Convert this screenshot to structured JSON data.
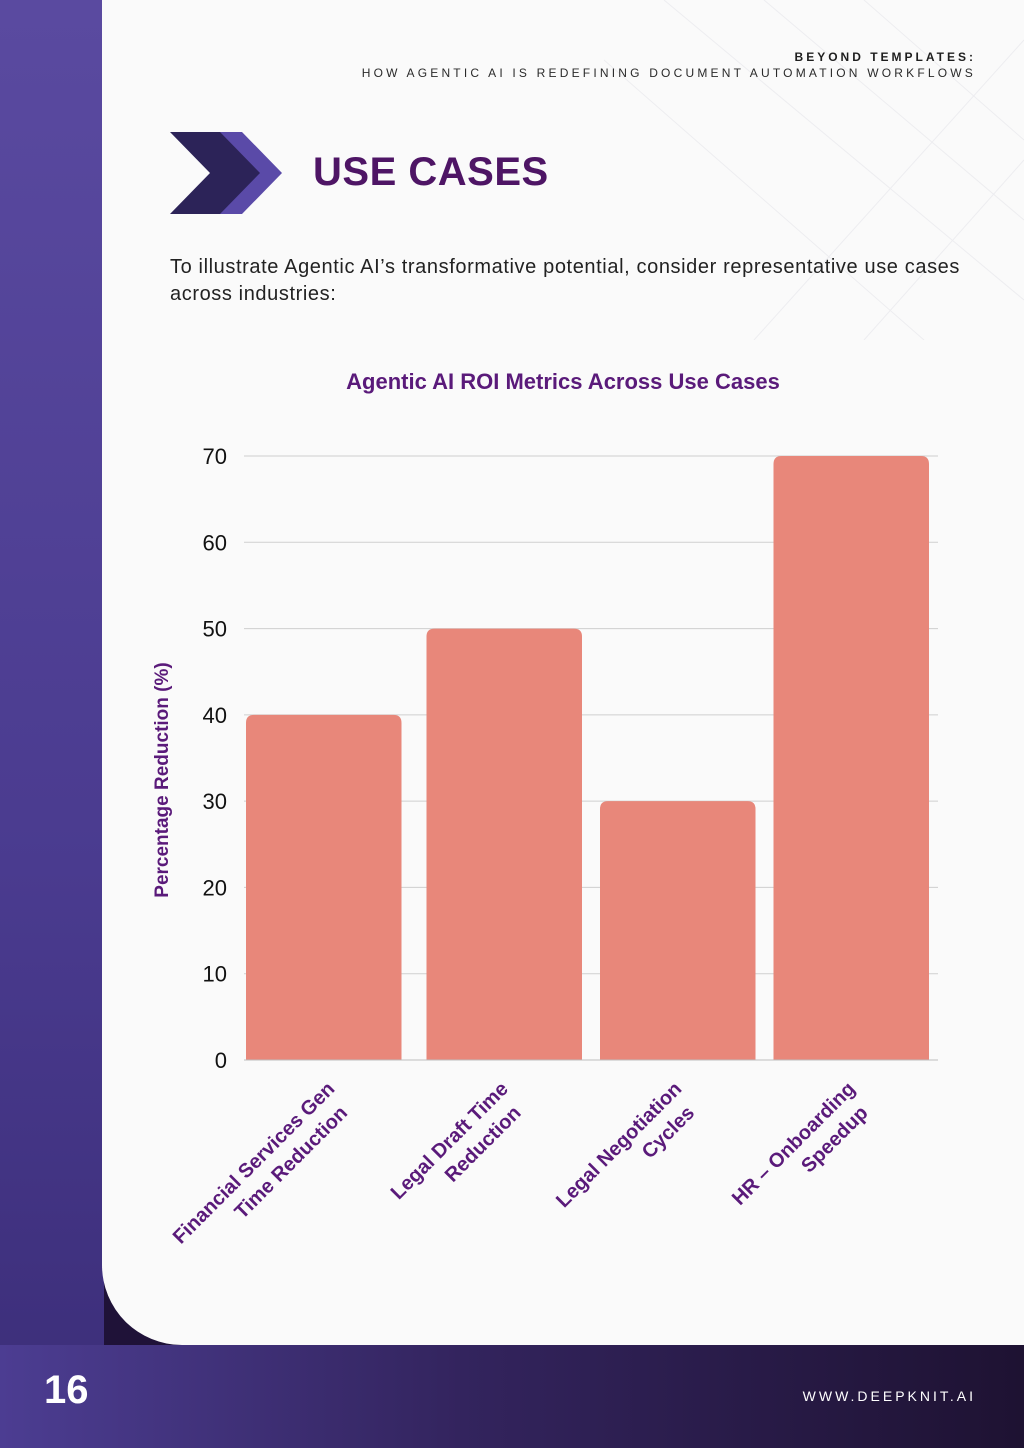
{
  "header": {
    "line1": "BEYOND TEMPLATES:",
    "line2": "HOW AGENTIC AI IS REDEFINING DOCUMENT AUTOMATION WORKFLOWS"
  },
  "section": {
    "title": "USE CASES",
    "intro": "To illustrate Agentic AI’s transformative potential, consider representative use cases across industries:"
  },
  "chart_data": {
    "type": "bar",
    "title": "Agentic AI ROI Metrics Across Use Cases",
    "xlabel": "",
    "ylabel": "Percentage Reduction (%)",
    "ylim": [
      0,
      70
    ],
    "yticks": [
      "0",
      "10",
      "20",
      "30",
      "40",
      "50",
      "60",
      "70"
    ],
    "categories": [
      [
        "Financial Services Gen",
        "Time Reduction"
      ],
      [
        "Legal Draft Time",
        "Reduction"
      ],
      [
        "Legal Negotiation",
        "Cycles"
      ],
      [
        "HR – Onboarding",
        "Speedup"
      ]
    ],
    "values": [
      40,
      50,
      30,
      70
    ],
    "grid": true,
    "bar_color": "#e8877a",
    "label_color": "#5a1a7a"
  },
  "footer": {
    "page_number": "16",
    "website": "WWW.DEEPKNIT.AI"
  },
  "colors": {
    "accent": "#4e1565",
    "sidebar": "#4a3b8f"
  }
}
